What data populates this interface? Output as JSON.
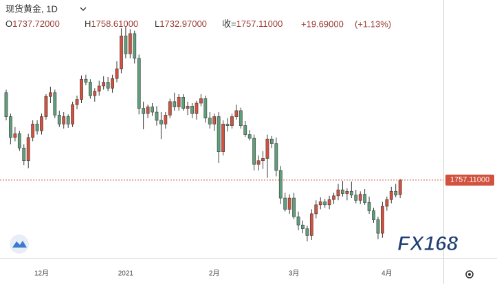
{
  "chart_data": {
    "type": "candlestick",
    "title": "现货黄金, 1D",
    "ohlc": [
      {
        "label": "O",
        "value": "1737.72000"
      },
      {
        "label": "H",
        "value": "1758.61000"
      },
      {
        "label": "L",
        "value": "1732.97000"
      },
      {
        "label": "收=",
        "value": "1757.11000"
      }
    ],
    "change": "+19.69000",
    "change_pct": "(+1.13%)",
    "last_price": {
      "value": 1757.11,
      "label": "1757.11000"
    },
    "watermark": "FX168",
    "up_color": "#d2523f",
    "down_color": "#5e9e7a",
    "ylim": [
      1653,
      1998
    ],
    "categories": [
      null,
      null,
      null,
      null,
      null,
      null,
      null,
      null,
      "12月",
      null,
      null,
      null,
      null,
      null,
      null,
      null,
      null,
      null,
      null,
      null,
      null,
      null,
      null,
      null,
      null,
      null,
      null,
      "2021",
      null,
      null,
      null,
      null,
      null,
      null,
      null,
      null,
      null,
      null,
      null,
      null,
      null,
      null,
      null,
      null,
      null,
      null,
      null,
      "2月",
      null,
      null,
      null,
      null,
      null,
      null,
      null,
      null,
      null,
      null,
      null,
      null,
      null,
      null,
      null,
      null,
      null,
      "3月",
      null,
      null,
      null,
      null,
      null,
      null,
      null,
      null,
      null,
      null,
      null,
      null,
      null,
      null,
      null,
      null,
      null,
      null,
      null,
      null,
      "4月",
      null,
      null,
      null
    ],
    "open": [
      1874,
      1842,
      1814,
      1819,
      1800,
      1783,
      1814,
      1832,
      1823,
      1842,
      1869,
      1874,
      1844,
      1832,
      1842,
      1832,
      1858,
      1865,
      1892,
      1888,
      1870,
      1876,
      1883,
      1888,
      1880,
      1893,
      1906,
      1950,
      1926,
      1953,
      1920,
      1853,
      1846,
      1855,
      1848,
      1837,
      1832,
      1844,
      1862,
      1855,
      1868,
      1853,
      1856,
      1846,
      1860,
      1866,
      1840,
      1832,
      1842,
      1795,
      1832,
      1830,
      1842,
      1850,
      1830,
      1818,
      1813,
      1778,
      1783,
      1786,
      1812,
      1806,
      1770,
      1733,
      1718,
      1733,
      1708,
      1697,
      1692,
      1683,
      1712,
      1724,
      1728,
      1724,
      1731,
      1736,
      1744,
      1739,
      1742,
      1737,
      1730,
      1738,
      1727,
      1716,
      1704,
      1686,
      1722,
      1731,
      1742,
      1737.72
    ],
    "high": [
      1878,
      1846,
      1828,
      1823,
      1805,
      1819,
      1837,
      1837,
      1846,
      1872,
      1882,
      1878,
      1850,
      1848,
      1845,
      1862,
      1870,
      1897,
      1898,
      1892,
      1880,
      1890,
      1896,
      1895,
      1898,
      1916,
      1960,
      1962,
      1959,
      1957,
      1925,
      1862,
      1858,
      1860,
      1856,
      1848,
      1848,
      1866,
      1874,
      1872,
      1872,
      1862,
      1860,
      1863,
      1872,
      1870,
      1848,
      1846,
      1848,
      1837,
      1840,
      1846,
      1858,
      1854,
      1836,
      1824,
      1818,
      1790,
      1796,
      1818,
      1816,
      1814,
      1776,
      1740,
      1738,
      1740,
      1715,
      1703,
      1696,
      1718,
      1730,
      1734,
      1732,
      1736,
      1740,
      1752,
      1756,
      1746,
      1755,
      1744,
      1742,
      1745,
      1735,
      1720,
      1708,
      1728,
      1735,
      1748,
      1752,
      1758.61
    ],
    "low": [
      1837,
      1805,
      1809,
      1796,
      1777,
      1773,
      1809,
      1818,
      1818,
      1838,
      1860,
      1840,
      1828,
      1826,
      1827,
      1828,
      1852,
      1860,
      1884,
      1866,
      1862,
      1870,
      1878,
      1876,
      1874,
      1888,
      1900,
      1920,
      1920,
      1913,
      1845,
      1825,
      1840,
      1843,
      1830,
      1812,
      1826,
      1840,
      1850,
      1850,
      1850,
      1844,
      1840,
      1838,
      1856,
      1834,
      1826,
      1823,
      1780,
      1790,
      1822,
      1826,
      1838,
      1826,
      1815,
      1810,
      1770,
      1770,
      1772,
      1760,
      1800,
      1762,
      1725,
      1715,
      1712,
      1705,
      1690,
      1686,
      1675,
      1677,
      1706,
      1718,
      1720,
      1718,
      1725,
      1730,
      1735,
      1730,
      1733,
      1726,
      1725,
      1724,
      1712,
      1700,
      1678,
      1680,
      1716,
      1726,
      1734,
      1732.97
    ],
    "close": [
      1842,
      1814,
      1819,
      1800,
      1783,
      1814,
      1832,
      1823,
      1842,
      1869,
      1874,
      1844,
      1832,
      1842,
      1832,
      1858,
      1865,
      1892,
      1888,
      1870,
      1876,
      1883,
      1888,
      1880,
      1893,
      1906,
      1950,
      1926,
      1953,
      1920,
      1853,
      1846,
      1855,
      1848,
      1837,
      1832,
      1844,
      1862,
      1855,
      1868,
      1853,
      1856,
      1846,
      1860,
      1866,
      1840,
      1832,
      1842,
      1795,
      1832,
      1830,
      1842,
      1850,
      1830,
      1818,
      1813,
      1778,
      1783,
      1786,
      1812,
      1806,
      1770,
      1733,
      1718,
      1733,
      1708,
      1697,
      1692,
      1683,
      1712,
      1724,
      1728,
      1724,
      1731,
      1736,
      1744,
      1739,
      1742,
      1737,
      1730,
      1738,
      1727,
      1716,
      1704,
      1686,
      1722,
      1731,
      1742,
      1737,
      1757.11
    ]
  }
}
